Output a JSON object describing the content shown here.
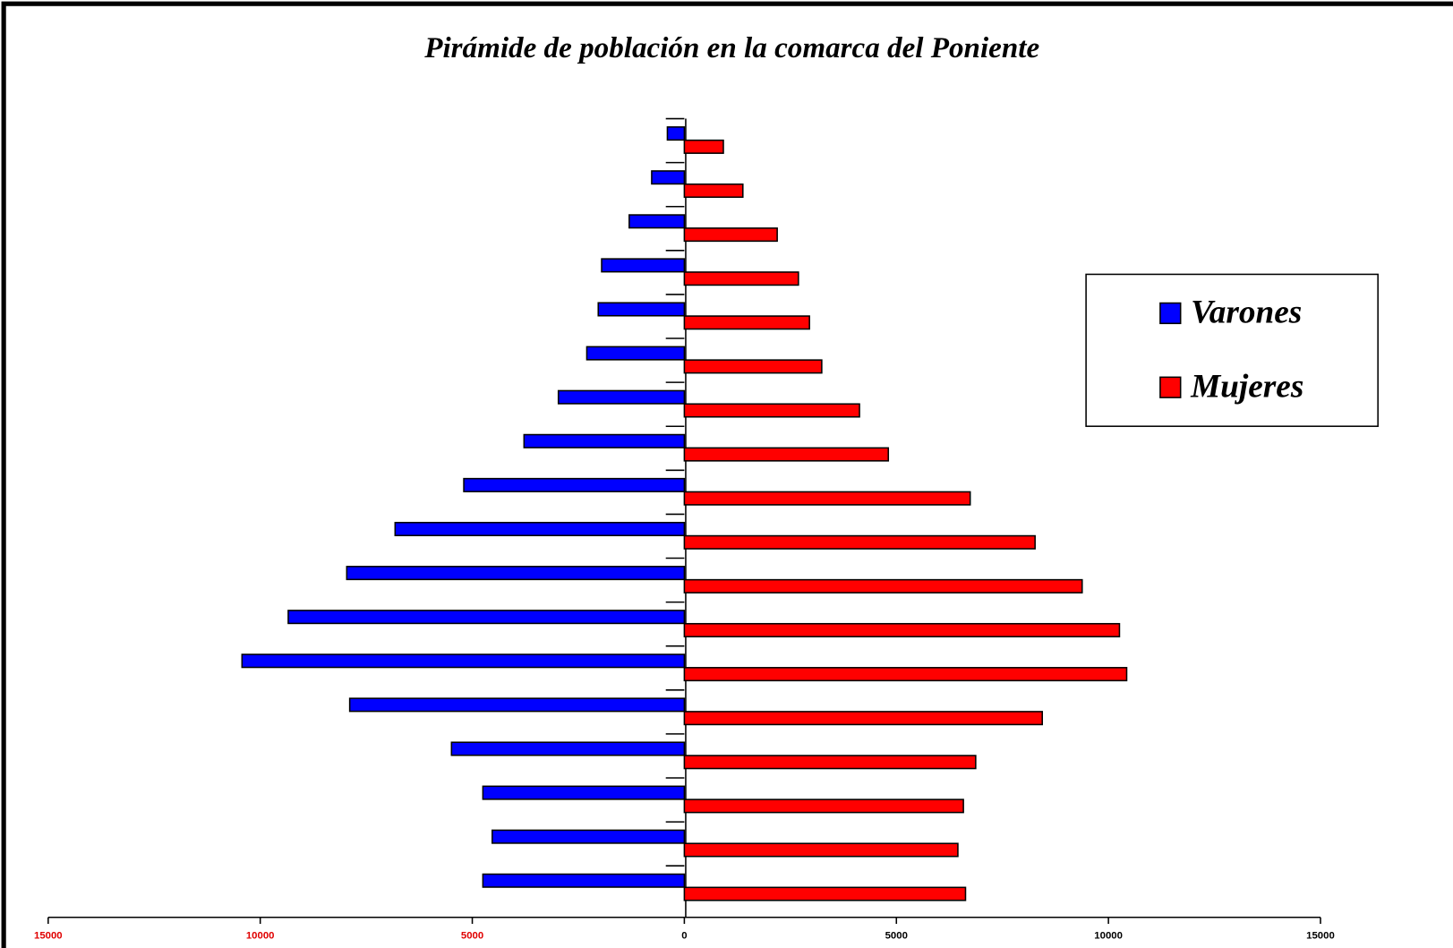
{
  "chart_data": {
    "type": "population-pyramid",
    "title": "Pirámide de población en la comarca del Poniente",
    "categories": [
      null,
      null,
      null,
      null,
      null,
      null,
      null,
      null,
      null,
      null,
      null,
      null,
      null,
      null,
      null,
      null,
      null,
      null
    ],
    "series": [
      {
        "name": "Varones",
        "color": "#0000ff",
        "side": "left",
        "values": [
          400,
          770,
          1300,
          1950,
          2030,
          2300,
          2970,
          3780,
          5200,
          6820,
          7960,
          9340,
          10430,
          7890,
          5490,
          4750,
          4530,
          4750
        ]
      },
      {
        "name": "Mujeres",
        "color": "#ff0000",
        "side": "right",
        "values": [
          920,
          1380,
          2190,
          2690,
          2950,
          3240,
          4130,
          4810,
          6740,
          8270,
          9380,
          10260,
          10430,
          8440,
          6870,
          6580,
          6450,
          6630
        ]
      }
    ],
    "xlim": [
      -15000,
      15000
    ],
    "xticks": [
      {
        "value": -15000,
        "label": "15000"
      },
      {
        "value": -10000,
        "label": "10000"
      },
      {
        "value": -5000,
        "label": "5000"
      },
      0,
      5000,
      10000,
      15000
    ],
    "xtick_label_colors": [
      "#e00000",
      "#e00000",
      "#e00000",
      "#000000",
      "#000000",
      "#000000",
      "#000000"
    ],
    "legend": "upper right"
  }
}
